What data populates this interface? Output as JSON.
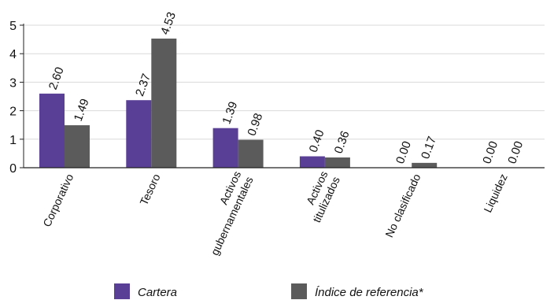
{
  "chart_data": {
    "type": "bar",
    "categories": [
      "Corporativo",
      "Tesoro",
      "Activos gubernamentales",
      "Activos titulizados",
      "No clasificado",
      "Liquidez"
    ],
    "category_lines": [
      [
        "Corporativo"
      ],
      [
        "Tesoro"
      ],
      [
        "Activos",
        "gubernamentales"
      ],
      [
        "Activos",
        "titulizados"
      ],
      [
        "No clasificado"
      ],
      [
        "Liquidez"
      ]
    ],
    "series": [
      {
        "name": "Cartera",
        "color": "#5a3f96",
        "values": [
          2.6,
          2.37,
          1.39,
          0.4,
          0.0,
          0.0
        ],
        "labels": [
          "2.60",
          "2.37",
          "1.39",
          "0.40",
          "0.00",
          "0.00"
        ]
      },
      {
        "name": "Índice de referencia*",
        "color": "#5b5b5b",
        "values": [
          1.49,
          4.53,
          0.98,
          0.36,
          0.17,
          0.0
        ],
        "labels": [
          "1.49",
          "4.53",
          "0.98",
          "0.36",
          "0.17",
          "0.00"
        ]
      }
    ],
    "ylim": [
      0,
      5
    ],
    "yticks": [
      0,
      1,
      2,
      3,
      4,
      5
    ],
    "grid": true,
    "legend_position": "bottom",
    "title": "",
    "xlabel": "",
    "ylabel": ""
  }
}
